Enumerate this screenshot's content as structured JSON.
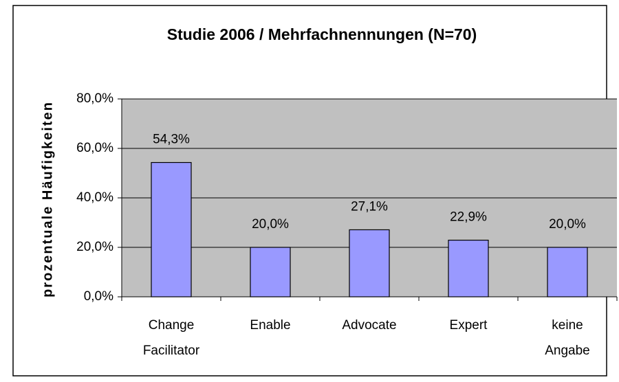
{
  "chart_data": {
    "type": "bar",
    "title": "Studie 2006 / Mehrfachnennungen (N=70)",
    "y_label": "prozentuale Häufigkeiten",
    "categories": [
      "Change Facilitator",
      "Enable",
      "Advocate",
      "Expert",
      "keine Angabe"
    ],
    "values": [
      54.3,
      20.0,
      27.1,
      22.9,
      20.0
    ],
    "value_labels": [
      "54,3%",
      "20,0%",
      "27,1%",
      "22,9%",
      "20,0%"
    ],
    "color": "#9999ff",
    "ylim": [
      0,
      80
    ],
    "yticks": [
      {
        "value": 0,
        "label": "0,0%"
      },
      {
        "value": 20,
        "label": "20,0%"
      },
      {
        "value": 40,
        "label": "40,0%"
      },
      {
        "value": 60,
        "label": "60,0%"
      },
      {
        "value": 80,
        "label": "80,0%"
      }
    ],
    "grid": true
  }
}
